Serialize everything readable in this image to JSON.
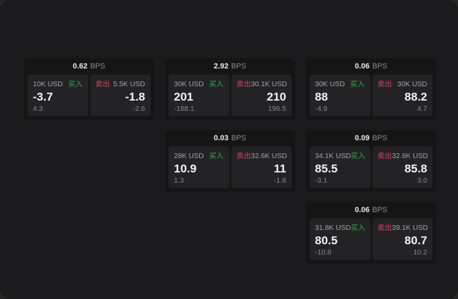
{
  "labels": {
    "bps_unit": "BPS",
    "buy": "买入",
    "sell": "卖出"
  },
  "colors": {
    "page_background": "#1b1b1d",
    "outer_background": "#262626",
    "card_background": "#151516",
    "panel_background": "#232325",
    "primary_text": "#f5f5f5",
    "secondary_text": "#a3a3a3",
    "muted_text": "#8a8a8a",
    "buy_green": "#3aa558",
    "sell_red": "#cc4a64"
  },
  "cards": [
    {
      "bps": "0.62",
      "buy_amount": "10K USD",
      "buy_price": "-3.7",
      "buy_delta": "4.3",
      "sell_amount": "5.5K USD",
      "sell_price": "-1.8",
      "sell_delta": "-2.6"
    },
    {
      "bps": "2.92",
      "buy_amount": "30K USD",
      "buy_price": "201",
      "buy_delta": "-188.1",
      "sell_amount": "30.1K USD",
      "sell_price": "210",
      "sell_delta": "196.5"
    },
    {
      "bps": "0.06",
      "buy_amount": "30K USD",
      "buy_price": "88",
      "buy_delta": "-4.9",
      "sell_amount": "30K USD",
      "sell_price": "88.2",
      "sell_delta": "4.7"
    },
    {
      "bps": "0.03",
      "buy_amount": "28K USD",
      "buy_price": "10.9",
      "buy_delta": "1.3",
      "sell_amount": "32.6K USD",
      "sell_price": "11",
      "sell_delta": "-1.8"
    },
    {
      "bps": "0.09",
      "buy_amount": "34.1K USD",
      "buy_price": "85.5",
      "buy_delta": "-3.1",
      "sell_amount": "32.8K USD",
      "sell_price": "85.8",
      "sell_delta": "3.0"
    },
    {
      "bps": "0.06",
      "buy_amount": "31.8K USD",
      "buy_price": "80.5",
      "buy_delta": "-10.8",
      "sell_amount": "39.1K USD",
      "sell_price": "80.7",
      "sell_delta": "10.2"
    }
  ]
}
